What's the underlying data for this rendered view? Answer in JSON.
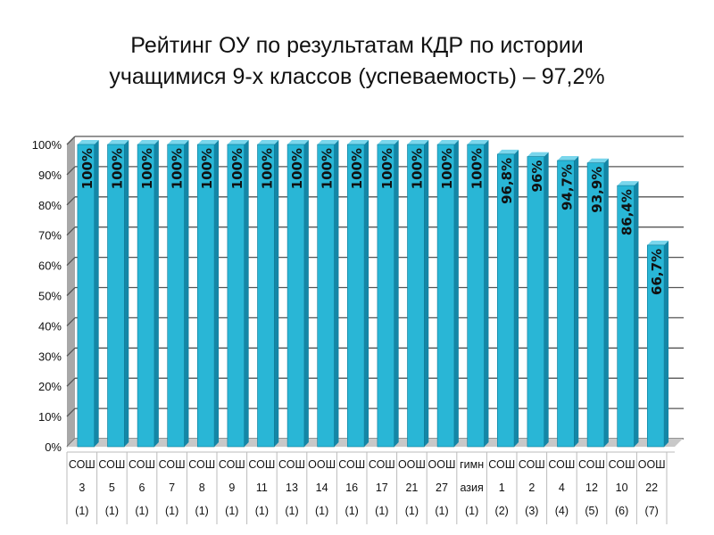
{
  "title_line1": "Рейтинг ОУ по результатам КДР по истории",
  "title_line2": "учащимися 9-х классов (успеваемость) – 97,2%",
  "colors": {
    "bar_front": "#29b6d6",
    "bar_side": "#1486a6",
    "bar_top": "#7ad6ec",
    "grid": "#555555",
    "wall": "#a8a8a8",
    "floor": "#c8c8c8",
    "text": "#111111"
  },
  "chart_data": {
    "type": "bar",
    "title": "Рейтинг ОУ по результатам КДР по истории учащимися 9-х классов (успеваемость) – 97,2%",
    "xlabel": "",
    "ylabel": "",
    "ylim": [
      0,
      100
    ],
    "y_ticks": [
      "0%",
      "10%",
      "20%",
      "30%",
      "40%",
      "50%",
      "60%",
      "70%",
      "80%",
      "90%",
      "100%"
    ],
    "grid": true,
    "categories": [
      [
        "СОШ",
        "3",
        "(1)"
      ],
      [
        "СОШ",
        "5",
        "(1)"
      ],
      [
        "СОШ",
        "6",
        "(1)"
      ],
      [
        "СОШ",
        "7",
        "(1)"
      ],
      [
        "СОШ",
        "8",
        "(1)"
      ],
      [
        "СОШ",
        "9",
        "(1)"
      ],
      [
        "СОШ",
        "11",
        "(1)"
      ],
      [
        "СОШ",
        "13",
        "(1)"
      ],
      [
        "ООШ",
        "14",
        "(1)"
      ],
      [
        "СОШ",
        "16",
        "(1)"
      ],
      [
        "СОШ",
        "17",
        "(1)"
      ],
      [
        "ООШ",
        "21",
        "(1)"
      ],
      [
        "ООШ",
        "27",
        "(1)"
      ],
      [
        "гимн",
        "азия",
        "(1)"
      ],
      [
        "СОШ",
        "1",
        "(2)"
      ],
      [
        "СОШ",
        "2",
        "(3)"
      ],
      [
        "СОШ",
        "4",
        "(4)"
      ],
      [
        "СОШ",
        "12",
        "(5)"
      ],
      [
        "СОШ",
        "10",
        "(6)"
      ],
      [
        "ООШ",
        "22",
        "(7)"
      ]
    ],
    "values": [
      100,
      100,
      100,
      100,
      100,
      100,
      100,
      100,
      100,
      100,
      100,
      100,
      100,
      100,
      96.8,
      96,
      94.7,
      93.9,
      86.4,
      66.7
    ],
    "data_labels": [
      "100%",
      "100%",
      "100%",
      "100%",
      "100%",
      "100%",
      "100%",
      "100%",
      "100%",
      "100%",
      "100%",
      "100%",
      "100%",
      "100%",
      "96,8%",
      "96%",
      "94,7%",
      "93,9%",
      "86,4%",
      "66,7%"
    ]
  }
}
